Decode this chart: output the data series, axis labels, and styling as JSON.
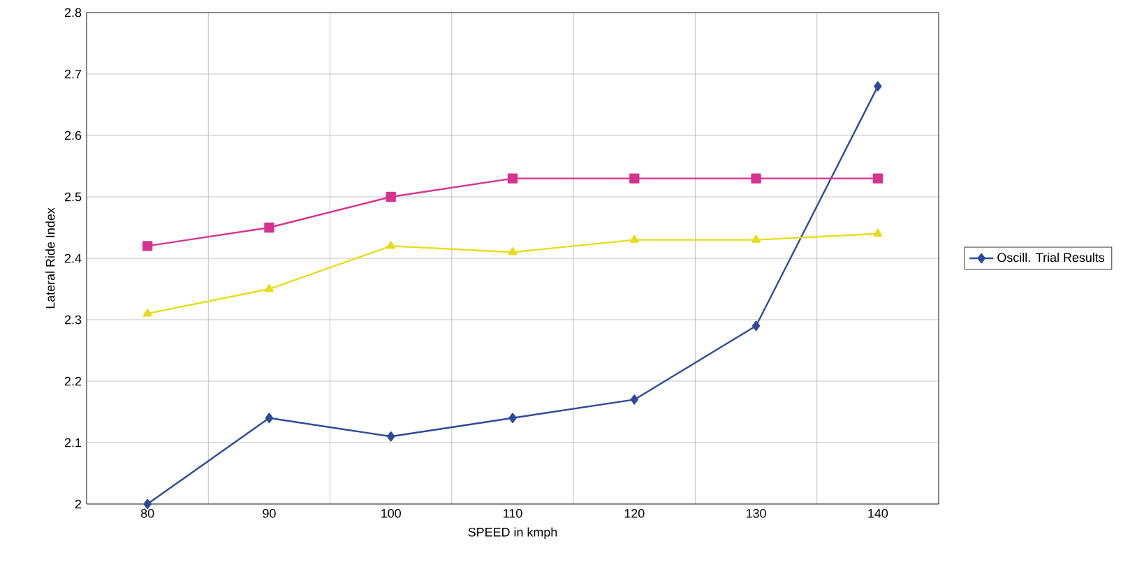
{
  "chart_data": {
    "type": "line",
    "xlabel": "SPEED in kmph",
    "ylabel": "Lateral Ride Index",
    "categories": [
      "80",
      "90",
      "100",
      "110",
      "120",
      "130",
      "140"
    ],
    "series": [
      {
        "name": "Oscill. Trial Results",
        "color": "#2e4a9a",
        "marker": "diamond",
        "values": [
          2.0,
          2.14,
          2.11,
          2.14,
          2.17,
          2.29,
          2.68
        ]
      },
      {
        "color": "#d63390",
        "marker": "square",
        "values": [
          2.42,
          2.45,
          2.5,
          2.53,
          2.53,
          2.53,
          2.53
        ]
      },
      {
        "color": "#e8dc1a",
        "marker": "triangle",
        "values": [
          2.31,
          2.35,
          2.42,
          2.41,
          2.43,
          2.43,
          2.44
        ]
      }
    ],
    "ylim": [
      2,
      2.8
    ],
    "yticks": [
      2,
      2.1,
      2.2,
      2.3,
      2.4,
      2.5,
      2.6,
      2.7,
      2.8
    ],
    "grid": true,
    "legend": "right"
  }
}
